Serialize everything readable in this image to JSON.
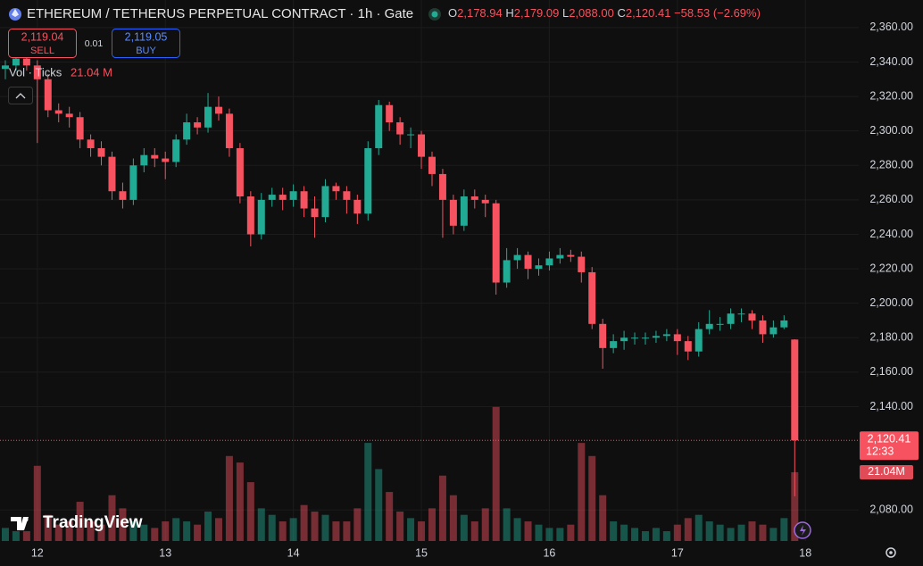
{
  "chart_data": {
    "type": "candlestick",
    "title": "ETHEREUM / TETHERUS PERPETUAL CONTRACT · 1h · Gate",
    "legend": {
      "o_label": "O",
      "o": "2,178.94",
      "h_label": "H",
      "h": "2,179.09",
      "l_label": "L",
      "l": "2,088.00",
      "c_label": "C",
      "c": "2,120.41",
      "change": "−58.53 (−2.69%)"
    },
    "trade": {
      "sell_price": "2,119.04",
      "sell": "SELL",
      "spread": "0.01",
      "buy_price": "2,119.05",
      "buy": "BUY"
    },
    "volume_legend": {
      "name": "Vol · Ticks",
      "value": "21.04 M"
    },
    "last_price_tag": "2,120.41",
    "countdown": "12:33",
    "volume_tag": "21.04M",
    "brand": "TradingView",
    "up_color": "#22ab94",
    "down_color": "#f7525f",
    "grid": true,
    "x": [
      0,
      2,
      4,
      6,
      8,
      10,
      12,
      14,
      16,
      18,
      20,
      22,
      24,
      26,
      28,
      30,
      32,
      34,
      36,
      38,
      40,
      42,
      44,
      46,
      48,
      50,
      52,
      54,
      56,
      58,
      60,
      62,
      64,
      66,
      68,
      70,
      72,
      74,
      76,
      78,
      80,
      82,
      84,
      86,
      88,
      90,
      92,
      94,
      96,
      98,
      100,
      102,
      104,
      106,
      108,
      110,
      112,
      114,
      116,
      118,
      120,
      122,
      124,
      126,
      128,
      130,
      132,
      134,
      136,
      138,
      140,
      142,
      144,
      146,
      148
    ],
    "open": [
      2336,
      2338,
      2342,
      2338,
      2330,
      2312,
      2310,
      2308,
      2295,
      2290,
      2285,
      2265,
      2260,
      2280,
      2286,
      2284,
      2282,
      2295,
      2305,
      2302,
      2314,
      2310,
      2290,
      2262,
      2240,
      2260,
      2263,
      2260,
      2265,
      2255,
      2250,
      2268,
      2265,
      2260,
      2252,
      2290,
      2315,
      2305,
      2298,
      2298,
      2285,
      2275,
      2260,
      2245,
      2262,
      2260,
      2258,
      2212,
      2225,
      2228,
      2220,
      2222,
      2226,
      2228,
      2227,
      2218,
      2188,
      2174,
      2178,
      2180,
      2180,
      2180,
      2181,
      2182,
      2178,
      2172,
      2185,
      2188,
      2188,
      2194,
      2194,
      2190,
      2182,
      2186,
      2178.94
    ],
    "high": [
      2341,
      2345,
      2345,
      2341,
      2333,
      2316,
      2314,
      2311,
      2298,
      2294,
      2288,
      2270,
      2284,
      2290,
      2290,
      2288,
      2298,
      2310,
      2308,
      2322,
      2320,
      2313,
      2293,
      2265,
      2264,
      2267,
      2267,
      2269,
      2268,
      2262,
      2272,
      2270,
      2268,
      2263,
      2294,
      2318,
      2317,
      2308,
      2302,
      2300,
      2288,
      2278,
      2263,
      2266,
      2266,
      2263,
      2260,
      2232,
      2232,
      2230,
      2226,
      2230,
      2232,
      2231,
      2230,
      2221,
      2191,
      2182,
      2184,
      2183,
      2183,
      2184,
      2185,
      2185,
      2181,
      2189,
      2196,
      2192,
      2197,
      2197,
      2196,
      2193,
      2190,
      2193,
      2179.09
    ],
    "low": [
      2330,
      2335,
      2335,
      2293,
      2308,
      2305,
      2302,
      2290,
      2285,
      2280,
      2260,
      2255,
      2257,
      2276,
      2279,
      2272,
      2279,
      2292,
      2298,
      2299,
      2306,
      2285,
      2258,
      2233,
      2237,
      2256,
      2254,
      2256,
      2250,
      2238,
      2247,
      2260,
      2252,
      2246,
      2248,
      2286,
      2300,
      2292,
      2290,
      2278,
      2268,
      2238,
      2240,
      2242,
      2255,
      2250,
      2205,
      2209,
      2220,
      2214,
      2216,
      2219,
      2223,
      2224,
      2212,
      2185,
      2162,
      2171,
      2173,
      2176,
      2176,
      2177,
      2178,
      2170,
      2167,
      2169,
      2182,
      2184,
      2185,
      2189,
      2185,
      2177,
      2180,
      2185,
      2088
    ],
    "close": [
      2338,
      2342,
      2338,
      2330,
      2312,
      2310,
      2308,
      2295,
      2290,
      2285,
      2265,
      2260,
      2280,
      2286,
      2284,
      2282,
      2295,
      2305,
      2302,
      2314,
      2310,
      2290,
      2262,
      2240,
      2260,
      2263,
      2260,
      2265,
      2255,
      2250,
      2268,
      2265,
      2260,
      2252,
      2290,
      2315,
      2305,
      2298,
      2298,
      2285,
      2275,
      2260,
      2245,
      2262,
      2260,
      2258,
      2212,
      2225,
      2228,
      2220,
      2222,
      2226,
      2228,
      2227,
      2218,
      2188,
      2174,
      2178,
      2180,
      2180,
      2180,
      2181,
      2182,
      2178,
      2172,
      2185,
      2188,
      2188,
      2194,
      2194,
      2190,
      2182,
      2186,
      2190,
      2120.41
    ],
    "volume": [
      4,
      3,
      3,
      23,
      8,
      5,
      6,
      12,
      6,
      5,
      14,
      10,
      6,
      5,
      4,
      6,
      7,
      6,
      5,
      9,
      7,
      26,
      24,
      18,
      10,
      8,
      6,
      7,
      11,
      9,
      8,
      6,
      6,
      10,
      30,
      22,
      15,
      9,
      7,
      6,
      10,
      20,
      14,
      8,
      6,
      10,
      41,
      10,
      7,
      6,
      5,
      4,
      4,
      5,
      30,
      26,
      14,
      6,
      5,
      4,
      3,
      4,
      3,
      5,
      7,
      8,
      6,
      5,
      4,
      5,
      6,
      5,
      4,
      7,
      21.04
    ],
    "xlim": [
      -1,
      160
    ],
    "ylim": [
      2062,
      2376
    ],
    "vlim": [
      0,
      80
    ],
    "xticks": [
      {
        "value": 6,
        "label": "12"
      },
      {
        "value": 30,
        "label": "13"
      },
      {
        "value": 54,
        "label": "14"
      },
      {
        "value": 78,
        "label": "15"
      },
      {
        "value": 102,
        "label": "16"
      },
      {
        "value": 126,
        "label": "17"
      },
      {
        "value": 150,
        "label": "18"
      }
    ],
    "yticks": [
      {
        "value": 2080,
        "label": "2,080.00"
      },
      {
        "value": 2140,
        "label": "2,140.00"
      },
      {
        "value": 2160,
        "label": "2,160.00"
      },
      {
        "value": 2180,
        "label": "2,180.00"
      },
      {
        "value": 2200,
        "label": "2,200.00"
      },
      {
        "value": 2220,
        "label": "2,220.00"
      },
      {
        "value": 2240,
        "label": "2,240.00"
      },
      {
        "value": 2260,
        "label": "2,260.00"
      },
      {
        "value": 2280,
        "label": "2,280.00"
      },
      {
        "value": 2300,
        "label": "2,300.00"
      },
      {
        "value": 2320,
        "label": "2,320.00"
      },
      {
        "value": 2340,
        "label": "2,340.00"
      },
      {
        "value": 2360,
        "label": "2,360.00"
      }
    ]
  }
}
